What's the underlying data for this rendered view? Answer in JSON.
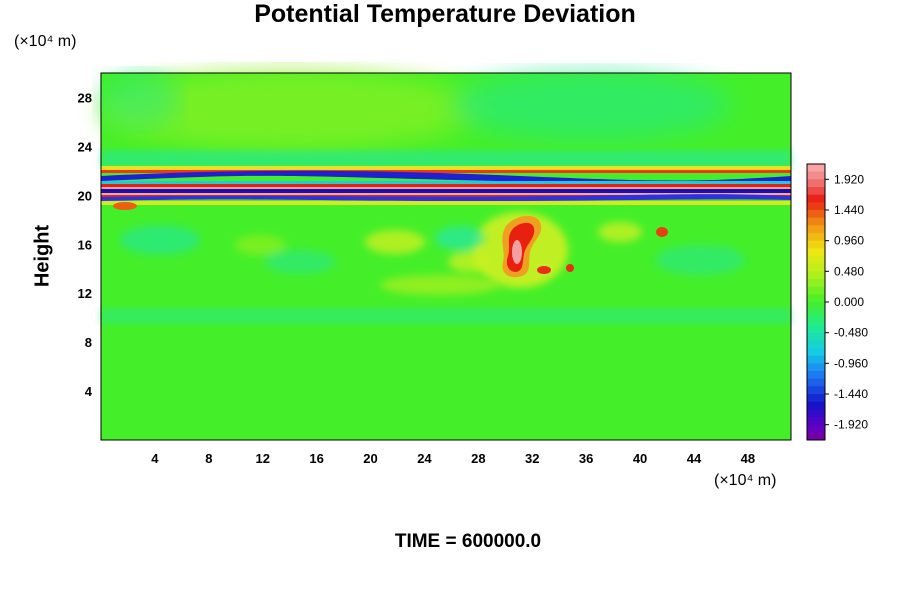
{
  "chart_data": {
    "type": "heatmap",
    "title": "Potential Temperature Deviation",
    "ylabel": "Height",
    "xunit": "(×10⁴ m)",
    "yunit": "(×10⁴ m)",
    "xlim": [
      0,
      51.2
    ],
    "ylim": [
      0,
      30
    ],
    "xticks": [
      "4",
      "8",
      "12",
      "16",
      "20",
      "24",
      "28",
      "32",
      "36",
      "40",
      "44",
      "48"
    ],
    "yticks": [
      "4",
      "8",
      "12",
      "16",
      "20",
      "24",
      "28"
    ],
    "colorbar": {
      "range": [
        -2.16,
        2.16
      ],
      "tick_labels": [
        "1.920",
        "1.440",
        "0.960",
        "0.480",
        "0.000",
        "-0.480",
        "-0.960",
        "-1.440",
        "-1.920"
      ]
    },
    "features": {
      "background_value": 0.0,
      "upper_band_y": [
        19.5,
        22.0
      ],
      "upper_band_description": "alternating positive/negative stripes",
      "convective_plume_x": [
        29,
        33
      ],
      "convective_plume_y": [
        13.5,
        18
      ],
      "convective_plume_peak": 2.0
    },
    "footer": "TIME = 600000.0"
  },
  "colors": {
    "background_field": "#44ef2a",
    "cool_cyan": "#1ee8a0",
    "strong_negative": "#1e10c8",
    "strong_positive": "#e81010",
    "max_positive": "#f5a0a0"
  }
}
